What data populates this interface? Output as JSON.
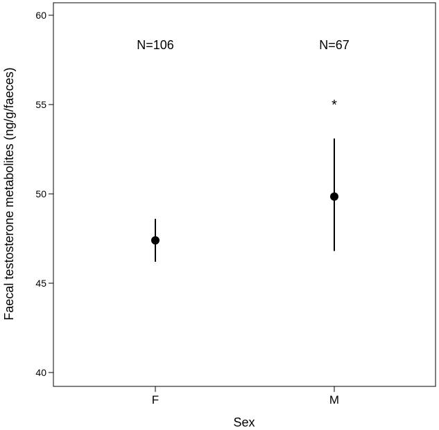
{
  "chart_data": {
    "type": "scatter",
    "title": "",
    "xlabel": "Sex",
    "ylabel": "Faecal testosterone metabolites (ng/g/faeces)",
    "ylim": [
      40,
      60
    ],
    "yticks": [
      "40",
      "45",
      "50",
      "55",
      "60"
    ],
    "categories": [
      "F",
      "M"
    ],
    "points": [
      {
        "category": "F",
        "mean": 47.4,
        "lower": 46.2,
        "upper": 48.6,
        "n_label": "N=106",
        "marker": ""
      },
      {
        "category": "M",
        "mean": 49.85,
        "lower": 46.8,
        "upper": 53.1,
        "n_label": "N=67",
        "marker": "*"
      }
    ],
    "n_label_y": 58.1,
    "marker_y": 55.0,
    "grid": false,
    "legend": "none"
  }
}
